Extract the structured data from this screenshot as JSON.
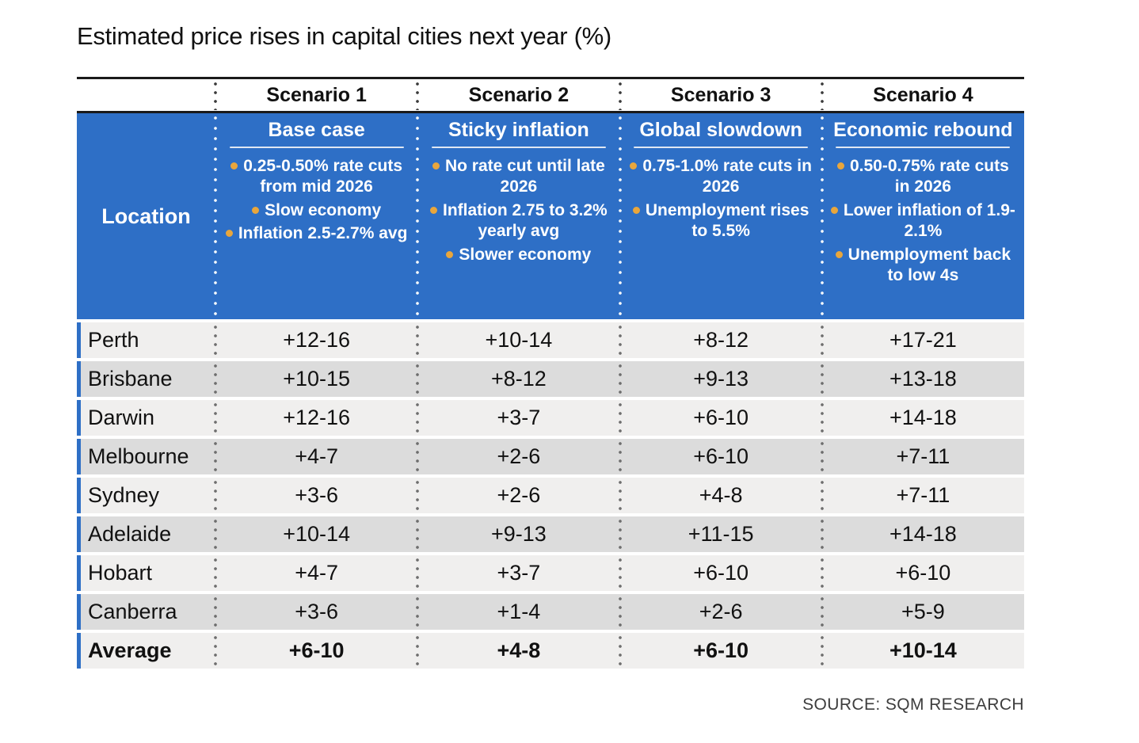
{
  "colors": {
    "blue": "#2e6fc6",
    "bullet": "#e9a63c",
    "row_light": "#f0efee",
    "row_dark": "#dcdcdc",
    "rule": "#1a1a1a",
    "text": "#111111",
    "source": "#3d3d3d"
  },
  "chart_data": {
    "type": "table",
    "title": "Estimated price rises in capital cities next year (%)",
    "location_header": "Location",
    "columns": [
      "Location",
      "Scenario 1",
      "Scenario 2",
      "Scenario 3",
      "Scenario 4"
    ],
    "scenarios": [
      {
        "label": "Scenario 1",
        "subtitle": "Base case",
        "assumptions": [
          "0.25-0.50% rate cuts from mid 2026",
          "Slow economy",
          "Inflation 2.5-2.7% avg"
        ]
      },
      {
        "label": "Scenario 2",
        "subtitle": "Sticky inflation",
        "assumptions": [
          "No rate cut until late 2026",
          "Inflation 2.75 to 3.2% yearly avg",
          "Slower economy"
        ]
      },
      {
        "label": "Scenario 3",
        "subtitle": "Global slowdown",
        "assumptions": [
          "0.75-1.0% rate cuts in 2026",
          "Unemployment rises to 5.5%"
        ]
      },
      {
        "label": "Scenario 4",
        "subtitle": "Economic rebound",
        "assumptions": [
          "0.50-0.75% rate cuts in 2026",
          "Lower inflation of 1.9-2.1%",
          "Unemployment back to low 4s"
        ]
      }
    ],
    "rows": [
      {
        "location": "Perth",
        "values": [
          "+12-16",
          "+10-14",
          "+8-12",
          "+17-21"
        ]
      },
      {
        "location": "Brisbane",
        "values": [
          "+10-15",
          "+8-12",
          "+9-13",
          "+13-18"
        ]
      },
      {
        "location": "Darwin",
        "values": [
          "+12-16",
          "+3-7",
          "+6-10",
          "+14-18"
        ]
      },
      {
        "location": "Melbourne",
        "values": [
          "+4-7",
          "+2-6",
          "+6-10",
          "+7-11"
        ]
      },
      {
        "location": "Sydney",
        "values": [
          "+3-6",
          "+2-6",
          "+4-8",
          "+7-11"
        ]
      },
      {
        "location": "Adelaide",
        "values": [
          "+10-14",
          "+9-13",
          "+11-15",
          "+14-18"
        ]
      },
      {
        "location": "Hobart",
        "values": [
          "+4-7",
          "+3-7",
          "+6-10",
          "+6-10"
        ]
      },
      {
        "location": "Canberra",
        "values": [
          "+3-6",
          "+1-4",
          "+2-6",
          "+5-9"
        ]
      },
      {
        "location": "Average",
        "values": [
          "+6-10",
          "+4-8",
          "+6-10",
          "+10-14"
        ]
      }
    ],
    "source": "SOURCE: SQM RESEARCH"
  }
}
